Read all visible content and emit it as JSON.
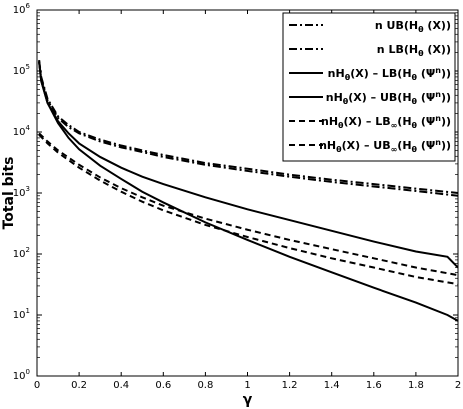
{
  "chart_data": {
    "type": "line",
    "title": "",
    "xlabel": "γ",
    "ylabel": "Total bits",
    "x_scale": "linear",
    "y_scale": "log",
    "xlim": [
      0,
      2
    ],
    "ylim": [
      1,
      1000000
    ],
    "xticks": [
      0,
      0.2,
      0.4,
      0.6,
      0.8,
      1,
      1.2,
      1.4,
      1.6,
      1.8,
      2
    ],
    "xtick_labels": [
      "0",
      "0.2",
      "0.4",
      "0.6",
      "0.8",
      "1",
      "1.2",
      "1.4",
      "1.6",
      "1.8",
      "2"
    ],
    "ytick_exponents": [
      0,
      1,
      2,
      3,
      4,
      5,
      6
    ],
    "yticks": [
      1,
      10,
      100,
      1000,
      10000,
      100000,
      1000000
    ],
    "grid": false,
    "legend_position": "top-right",
    "series": [
      {
        "label_main": "n UB(H",
        "label_sub": "θ",
        "label_tail": " (X))",
        "label_sup": "",
        "style": "dashdot",
        "x": [
          0.01,
          0.02,
          0.05,
          0.1,
          0.15,
          0.2,
          0.3,
          0.4,
          0.5,
          0.6,
          0.8,
          1.0,
          1.2,
          1.4,
          1.6,
          1.8,
          2.0
        ],
        "y": [
          150000,
          80000,
          35000,
          18000,
          13000,
          10000,
          7500,
          6000,
          5000,
          4200,
          3100,
          2500,
          2000,
          1650,
          1400,
          1180,
          1000
        ]
      },
      {
        "label_main": "n LB(H",
        "label_sub": "θ",
        "label_tail": " (X))",
        "label_sup": "",
        "style": "dashdot",
        "x": [
          0.01,
          0.02,
          0.05,
          0.1,
          0.15,
          0.2,
          0.3,
          0.4,
          0.5,
          0.6,
          0.8,
          1.0,
          1.2,
          1.4,
          1.6,
          1.8,
          2.0
        ],
        "y": [
          140000,
          75000,
          33000,
          17000,
          12000,
          9500,
          7000,
          5600,
          4700,
          3900,
          2900,
          2300,
          1850,
          1520,
          1280,
          1080,
          900
        ]
      },
      {
        "label_main": "nH",
        "label_sub": "θ",
        "label_tail": "(X) – LB(H",
        "label_sub2": "θ",
        "label_tail2": " (Ψ",
        "label_sup": "n",
        "label_end": "))",
        "style": "solid",
        "x": [
          0.01,
          0.02,
          0.05,
          0.1,
          0.15,
          0.2,
          0.3,
          0.4,
          0.5,
          0.6,
          0.8,
          1.0,
          1.2,
          1.4,
          1.6,
          1.8,
          1.95,
          2.0
        ],
        "y": [
          150000,
          70000,
          30000,
          14000,
          8000,
          5200,
          2800,
          1700,
          1050,
          700,
          330,
          170,
          90,
          50,
          28,
          16,
          10,
          8
        ]
      },
      {
        "label_main": "nH",
        "label_sub": "θ",
        "label_tail": "(X) – UB(H",
        "label_sub2": "θ",
        "label_tail2": " (Ψ",
        "label_sup": "n",
        "label_end": "))",
        "style": "solid",
        "x": [
          0.01,
          0.02,
          0.05,
          0.1,
          0.15,
          0.2,
          0.3,
          0.4,
          0.5,
          0.6,
          0.8,
          1.0,
          1.2,
          1.4,
          1.6,
          1.8,
          1.95,
          2.0
        ],
        "y": [
          140000,
          68000,
          30000,
          15000,
          9500,
          6500,
          3900,
          2600,
          1850,
          1400,
          850,
          540,
          360,
          240,
          160,
          110,
          90,
          60
        ]
      },
      {
        "label_main": "nH",
        "label_sub": "θ",
        "label_tail": "(X) – LB",
        "label_sub2": "∞",
        "label_tail2": "(H",
        "label_sub3": "θ",
        "label_tail3": " (Ψ",
        "label_sup": "n",
        "label_end": "))",
        "style": "dashed",
        "x": [
          0.01,
          0.05,
          0.1,
          0.2,
          0.3,
          0.4,
          0.5,
          0.6,
          0.8,
          1.0,
          1.2,
          1.4,
          1.6,
          1.8,
          2.0
        ],
        "y": [
          9500,
          7000,
          5000,
          2900,
          1800,
          1200,
          850,
          620,
          380,
          250,
          170,
          120,
          85,
          60,
          45
        ]
      },
      {
        "label_main": "nH",
        "label_sub": "θ",
        "label_tail": "(X) – UB",
        "label_sub2": "∞",
        "label_tail2": "(H",
        "label_sub3": "θ",
        "label_tail3": " (Ψ",
        "label_sup": "n",
        "label_end": "))",
        "style": "dashed",
        "x": [
          0.01,
          0.05,
          0.1,
          0.2,
          0.3,
          0.4,
          0.5,
          0.6,
          0.8,
          1.0,
          1.2,
          1.4,
          1.6,
          1.8,
          2.0
        ],
        "y": [
          9000,
          6500,
          4600,
          2600,
          1600,
          1050,
          720,
          520,
          300,
          190,
          125,
          85,
          60,
          42,
          32
        ]
      }
    ]
  }
}
